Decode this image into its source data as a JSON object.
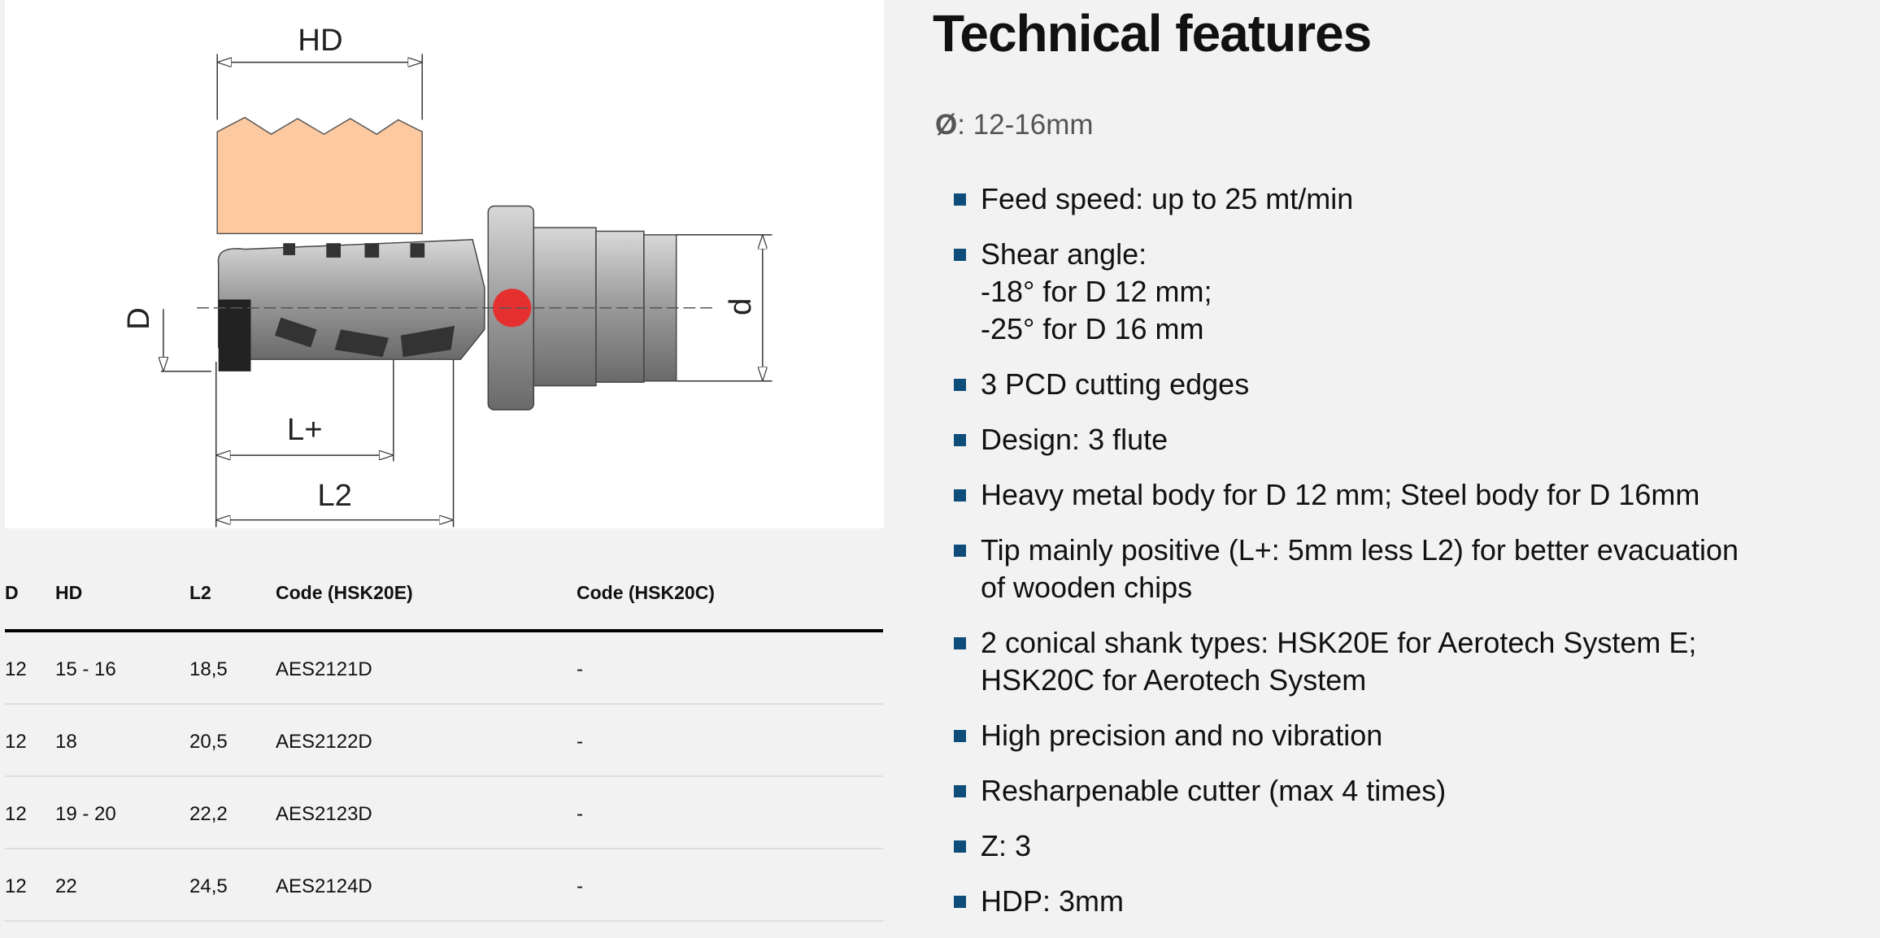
{
  "drawing": {
    "labels": {
      "hd": "HD",
      "d_upper": "D",
      "d_lower": "d",
      "l_plus": "L+",
      "l2": "L2"
    }
  },
  "table": {
    "headers": [
      "D",
      "HD",
      "L2",
      "Code (HSK20E)",
      "Code (HSK20C)"
    ],
    "rows": [
      [
        "12",
        "15 - 16",
        "18,5",
        "AES2121D",
        "-"
      ],
      [
        "12",
        "18",
        "20,5",
        "AES2122D",
        "-"
      ],
      [
        "12",
        "19 - 20",
        "22,2",
        "AES2123D",
        "-"
      ],
      [
        "12",
        "22",
        "24,5",
        "AES2124D",
        "-"
      ]
    ]
  },
  "features": {
    "title": "Technical features",
    "diameter_symbol": "Ø",
    "diameter_value": ": 12-16mm",
    "bullet_color": "#0e4d7a",
    "items": [
      "Feed speed: up to 25 mt/min",
      "Shear angle:\n-18° for D 12 mm;\n-25° for D 16 mm",
      "3 PCD cutting edges",
      "Design: 3 flute",
      "Heavy metal body for D 12 mm; Steel body for D 16mm",
      "Tip mainly positive (L+: 5mm less L2) for better evacuation\nof wooden chips",
      "2 conical shank types: HSK20E for Aerotech System E;\nHSK20C for Aerotech System",
      "High precision and no vibration",
      "Resharpenable cutter (max 4 times)",
      "Z: 3",
      "HDP: 3mm"
    ]
  }
}
